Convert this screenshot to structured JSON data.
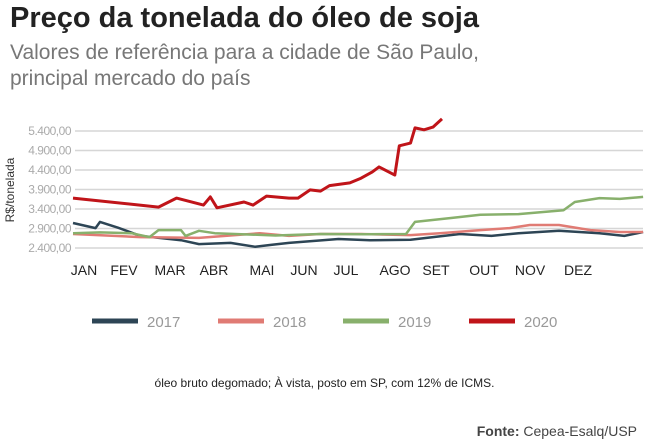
{
  "title": "Preço da tonelada do óleo de soja",
  "subtitle_line1": "Valores de referência para a cidade de São Paulo,",
  "subtitle_line2": "principal mercado do país",
  "note": "óleo bruto degomado; À vista, posto em SP, com 12% de ICMS.",
  "source_label": "Fonte:",
  "source": "Cepea-Esalq/USP",
  "chart_data": {
    "type": "line",
    "ylabel": "R$/tonelada",
    "yticks": [
      5400,
      4900,
      4400,
      3900,
      3400,
      2900,
      2400
    ],
    "ytick_labels": [
      "5.400,00",
      "4.900,00",
      "4.400,00",
      "3.900,00",
      "3.400,00",
      "2.900,00",
      "2.400,00"
    ],
    "categories": [
      "JAN",
      "FEV",
      "MAR",
      "ABR",
      "MAI",
      "JUN",
      "JUL",
      "AGO",
      "SET",
      "OUT",
      "NOV",
      "DEZ"
    ],
    "x_unit": "months since start of year",
    "grid": true,
    "legend_placement": "bottom",
    "series": [
      {
        "name": "2017",
        "color": "#2d4555",
        "points": [
          [
            0,
            3040
          ],
          [
            0.5,
            2910
          ],
          [
            0.6,
            3070
          ],
          [
            1.0,
            2920
          ],
          [
            1.5,
            2710
          ],
          [
            2.4,
            2600
          ],
          [
            2.8,
            2500
          ],
          [
            3.5,
            2530
          ],
          [
            4.05,
            2430
          ],
          [
            4.4,
            2480
          ],
          [
            4.8,
            2530
          ],
          [
            5.9,
            2630
          ],
          [
            6.6,
            2600
          ],
          [
            7.5,
            2610
          ],
          [
            8.6,
            2760
          ],
          [
            9.3,
            2710
          ],
          [
            9.9,
            2780
          ],
          [
            10.8,
            2840
          ],
          [
            11.7,
            2780
          ],
          [
            12.25,
            2710
          ],
          [
            12.67,
            2810
          ]
        ]
      },
      {
        "name": "2018",
        "color": "#e07b74",
        "points": [
          [
            0,
            2760
          ],
          [
            1.5,
            2680
          ],
          [
            2.8,
            2660
          ],
          [
            4.15,
            2780
          ],
          [
            4.8,
            2710
          ],
          [
            5.5,
            2760
          ],
          [
            6.4,
            2760
          ],
          [
            7.5,
            2730
          ],
          [
            8.15,
            2780
          ],
          [
            9.05,
            2860
          ],
          [
            9.7,
            2910
          ],
          [
            10.15,
            2990
          ],
          [
            10.8,
            2990
          ],
          [
            11.5,
            2860
          ],
          [
            12.15,
            2810
          ],
          [
            12.67,
            2810
          ]
        ]
      },
      {
        "name": "2019",
        "color": "#88b06c",
        "points": [
          [
            0,
            2780
          ],
          [
            0.6,
            2800
          ],
          [
            1.3,
            2780
          ],
          [
            1.7,
            2680
          ],
          [
            1.9,
            2860
          ],
          [
            2.4,
            2860
          ],
          [
            2.5,
            2710
          ],
          [
            2.8,
            2840
          ],
          [
            3.15,
            2780
          ],
          [
            4.5,
            2720
          ],
          [
            5.5,
            2760
          ],
          [
            6.5,
            2750
          ],
          [
            7.4,
            2760
          ],
          [
            7.6,
            3070
          ],
          [
            8.4,
            3170
          ],
          [
            9.05,
            3250
          ],
          [
            9.9,
            3270
          ],
          [
            10.9,
            3370
          ],
          [
            11.15,
            3580
          ],
          [
            11.7,
            3680
          ],
          [
            12.15,
            3660
          ],
          [
            12.67,
            3710
          ]
        ]
      },
      {
        "name": "2020",
        "color": "#c01419",
        "points": [
          [
            0,
            3680
          ],
          [
            1.9,
            3450
          ],
          [
            2.3,
            3680
          ],
          [
            2.9,
            3500
          ],
          [
            3.05,
            3710
          ],
          [
            3.2,
            3430
          ],
          [
            3.8,
            3580
          ],
          [
            4.0,
            3500
          ],
          [
            4.3,
            3730
          ],
          [
            4.8,
            3680
          ],
          [
            5.0,
            3680
          ],
          [
            5.27,
            3890
          ],
          [
            5.5,
            3860
          ],
          [
            5.7,
            4000
          ],
          [
            6.15,
            4070
          ],
          [
            6.4,
            4190
          ],
          [
            6.65,
            4350
          ],
          [
            6.8,
            4480
          ],
          [
            7.15,
            4270
          ],
          [
            7.25,
            5020
          ],
          [
            7.5,
            5090
          ],
          [
            7.6,
            5480
          ],
          [
            7.8,
            5430
          ],
          [
            8.0,
            5500
          ],
          [
            8.2,
            5710
          ]
        ]
      }
    ]
  }
}
